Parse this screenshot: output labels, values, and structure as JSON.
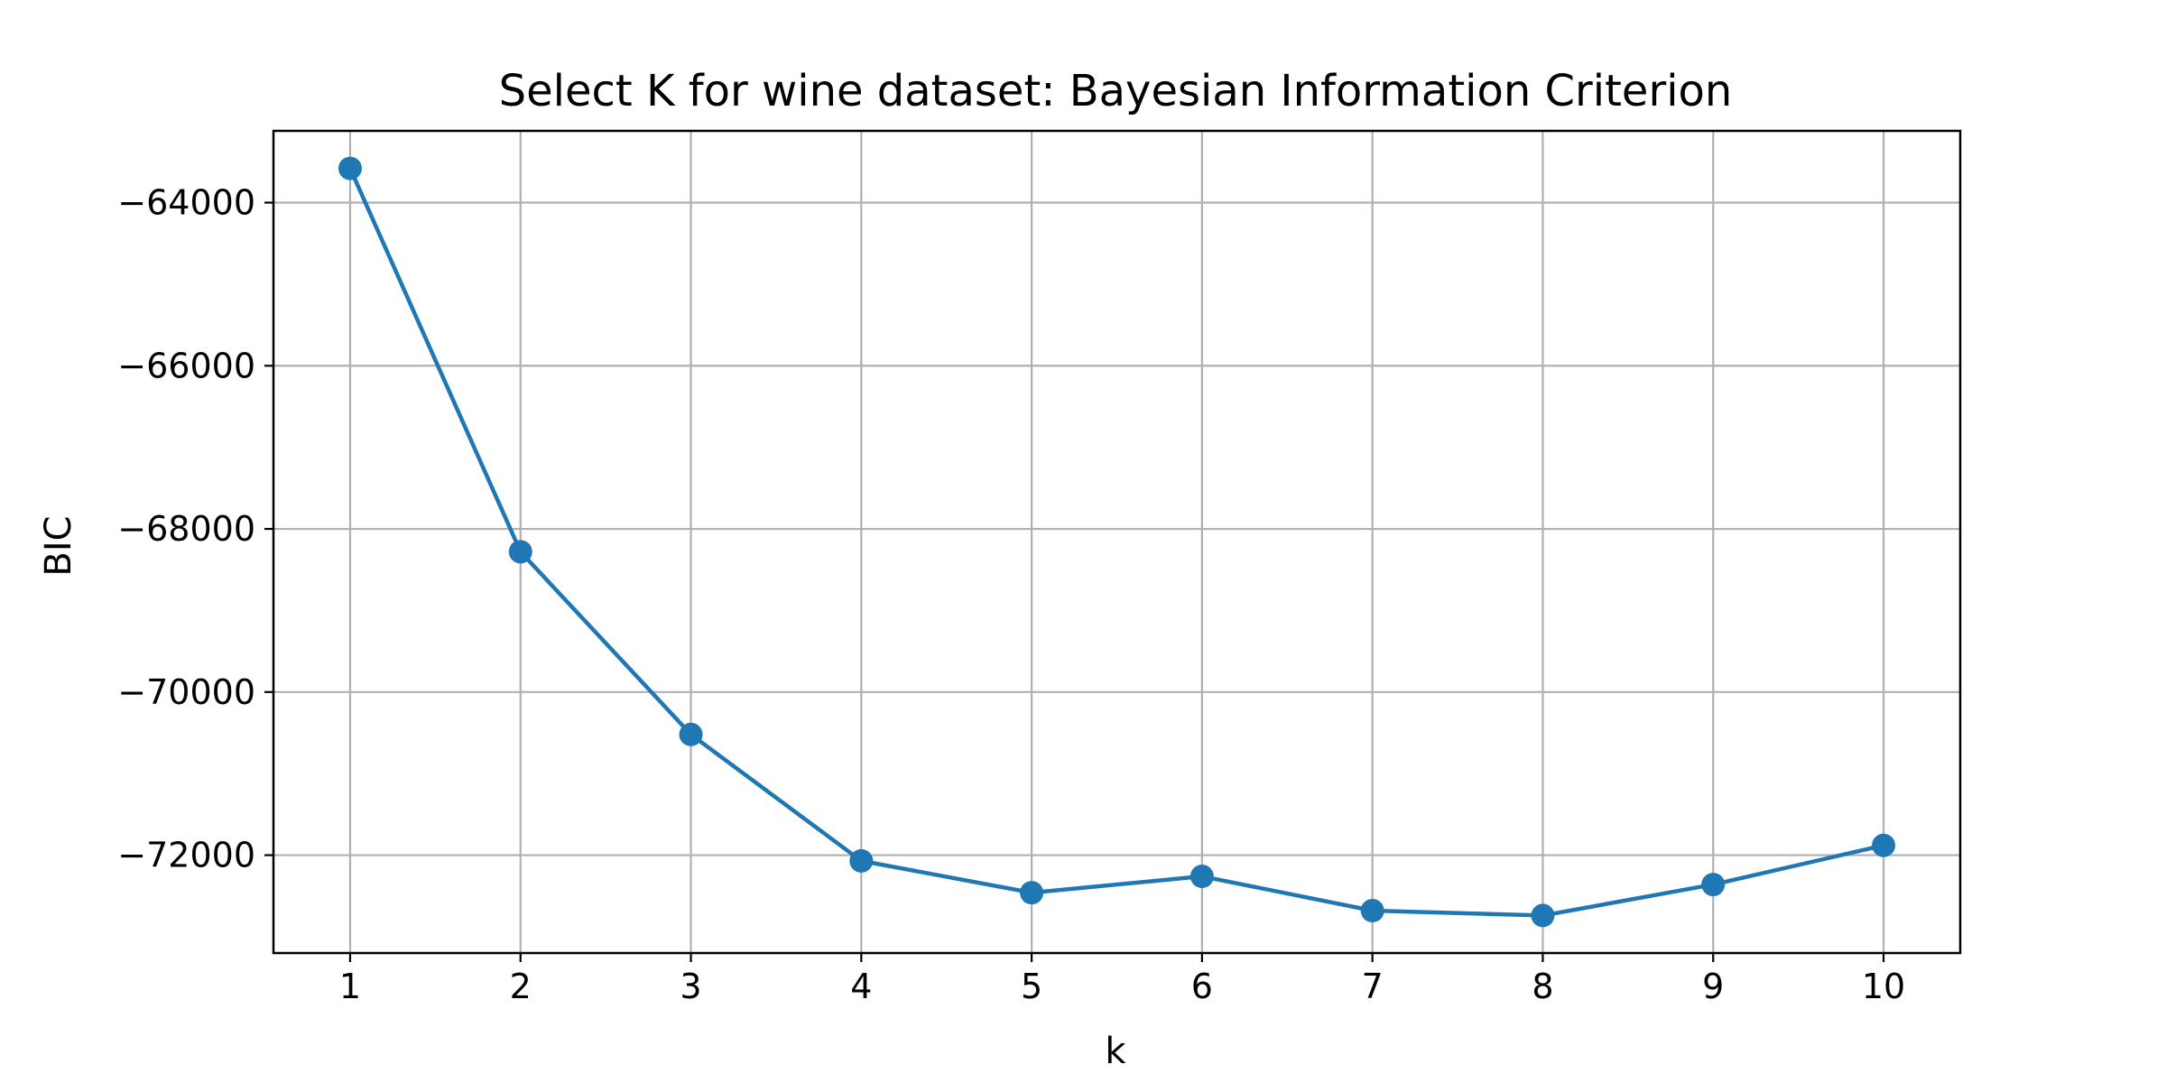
{
  "chart_data": {
    "type": "line",
    "title": "Select K for wine dataset: Bayesian Information Criterion",
    "xlabel": "k",
    "ylabel": "BIC",
    "x": [
      1,
      2,
      3,
      4,
      5,
      6,
      7,
      8,
      9,
      10
    ],
    "series": [
      {
        "values": [
          -63580,
          -68280,
          -70520,
          -72070,
          -72460,
          -72260,
          -72680,
          -72740,
          -72360,
          -71880
        ],
        "color": "#1f77b4",
        "marker": "circle"
      }
    ],
    "xticks": [
      "1",
      "2",
      "3",
      "4",
      "5",
      "6",
      "7",
      "8",
      "9",
      "10"
    ],
    "yticks": [
      {
        "value": -64000,
        "label": "−64000"
      },
      {
        "value": -66000,
        "label": "−66000"
      },
      {
        "value": -68000,
        "label": "−68000"
      },
      {
        "value": -70000,
        "label": "−70000"
      },
      {
        "value": -72000,
        "label": "−72000"
      }
    ],
    "xlim": [
      0.55,
      10.45
    ],
    "ylim": [
      -73200,
      -63120
    ],
    "grid": true
  }
}
